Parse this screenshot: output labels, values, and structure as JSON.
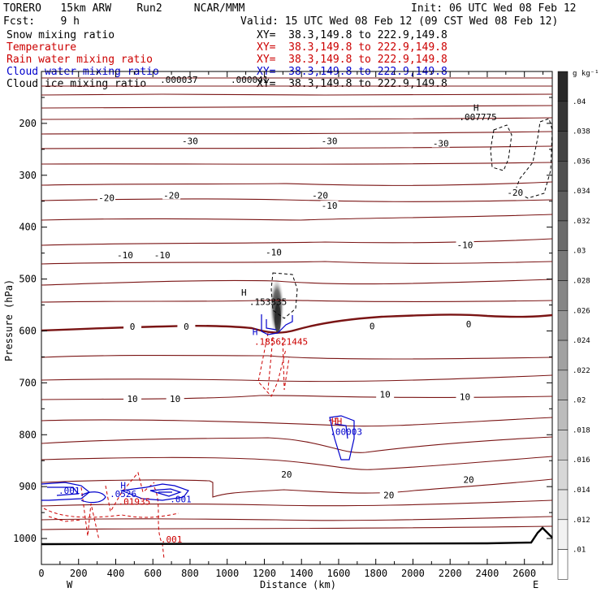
{
  "header": {
    "model": "TORERO   15km ARW    Run2     NCAR/MMM",
    "init": "Init: 06 UTC Wed 08 Feb 12",
    "fcst": "Fcst:    9 h",
    "valid": "Valid: 15 UTC Wed 08 Feb 12 (09 CST Wed 08 Feb 12)"
  },
  "fields": [
    {
      "name": "Snow mixing ratio",
      "xy": "XY=  38.3,149.8 to 222.9,149.8",
      "color": "#000000"
    },
    {
      "name": "Temperature",
      "xy": "XY=  38.3,149.8 to 222.9,149.8",
      "color": "#cc0000"
    },
    {
      "name": "Rain water mixing ratio",
      "xy": "XY=  38.3,149.8 to 222.9,149.8",
      "color": "#cc0000"
    },
    {
      "name": "Cloud water mixing ratio",
      "xy": "XY=  38.3,149.8 to 222.9,149.8",
      "color": "#0000cc"
    },
    {
      "name": "Cloud ice mixing ratio",
      "xy": "XY=  38.3,149.8 to 222.9,149.8",
      "color": "#000000"
    }
  ],
  "chart_data": {
    "type": "contour",
    "ylabel": "Pressure (hPa)",
    "xlabel": "Distance (km)",
    "x_ticks": [
      0,
      200,
      400,
      600,
      800,
      1000,
      1200,
      1400,
      1600,
      1800,
      2000,
      2200,
      2400,
      2600
    ],
    "y_ticks": [
      200,
      300,
      400,
      500,
      600,
      700,
      800,
      900,
      1000
    ],
    "xlim": [
      0,
      2750
    ],
    "ylim": [
      1050,
      100
    ],
    "x_end_labels": {
      "left": "W",
      "right": "E"
    },
    "colorbar": {
      "unit": "g kg⁻¹",
      "ticks": [
        ".04",
        ".038",
        ".036",
        ".034",
        ".032",
        ".03",
        ".028",
        ".026",
        ".024",
        ".022",
        ".02",
        ".018",
        ".016",
        ".014",
        ".012",
        ".01"
      ]
    },
    "temperature_labels": [
      {
        "text": "-30",
        "x": 800,
        "p": 235
      },
      {
        "text": "-30",
        "x": 1550,
        "p": 235
      },
      {
        "text": "-30",
        "x": 2150,
        "p": 240
      },
      {
        "text": "-20",
        "x": 700,
        "p": 340
      },
      {
        "text": "-20",
        "x": 1500,
        "p": 340
      },
      {
        "text": "-20",
        "x": 2550,
        "p": 335
      },
      {
        "text": "-20",
        "x": 350,
        "p": 345
      },
      {
        "text": "-10",
        "x": 450,
        "p": 455
      },
      {
        "text": "-10",
        "x": 650,
        "p": 455
      },
      {
        "text": "-10",
        "x": 1250,
        "p": 450
      },
      {
        "text": "-10",
        "x": 1550,
        "p": 360
      },
      {
        "text": "-10",
        "x": 2280,
        "p": 436
      },
      {
        "text": "0",
        "x": 490,
        "p": 593
      },
      {
        "text": "0",
        "x": 780,
        "p": 593
      },
      {
        "text": "0",
        "x": 1780,
        "p": 592
      },
      {
        "text": "0",
        "x": 2300,
        "p": 588
      },
      {
        "text": "10",
        "x": 490,
        "p": 732
      },
      {
        "text": "10",
        "x": 720,
        "p": 732
      },
      {
        "text": "10",
        "x": 1850,
        "p": 724
      },
      {
        "text": "10",
        "x": 2280,
        "p": 728
      },
      {
        "text": "20",
        "x": 1320,
        "p": 878
      },
      {
        "text": "20",
        "x": 1870,
        "p": 918
      },
      {
        "text": "20",
        "x": 2300,
        "p": 888
      }
    ],
    "extrema_labels": [
      {
        "text": ".000037",
        "x": 740,
        "p": 122,
        "color": "#000000"
      },
      {
        "text": ".000041",
        "x": 1120,
        "p": 122,
        "color": "#000000"
      },
      {
        "text": "H",
        "x": 2340,
        "p": 176,
        "color": "#000000"
      },
      {
        "text": ".007775",
        "x": 2350,
        "p": 194,
        "color": "#000000"
      },
      {
        "text": "H",
        "x": 1090,
        "p": 532,
        "color": "#000000"
      },
      {
        "text": ".153335",
        "x": 1220,
        "p": 550,
        "color": "#000000"
      },
      {
        "text": "H",
        "x": 1150,
        "p": 608,
        "color": "#0000cc"
      },
      {
        "text": ".185621445",
        "x": 1290,
        "p": 627,
        "color": "#cc0000"
      },
      {
        "text": "HH",
        "x": 1590,
        "p": 780,
        "color": "#cc0000"
      },
      {
        "text": ".00003",
        "x": 1640,
        "p": 800,
        "color": "#0000cc"
      },
      {
        "text": ".001",
        "x": 150,
        "p": 914,
        "color": "#0000cc"
      },
      {
        "text": "H",
        "x": 440,
        "p": 904,
        "color": "#0000cc"
      },
      {
        "text": ".0526",
        "x": 440,
        "p": 920,
        "color": "#0000cc"
      },
      {
        "text": ".01935",
        "x": 500,
        "p": 935,
        "color": "#cc0000"
      },
      {
        "text": ".001",
        "x": 750,
        "p": 930,
        "color": "#0000cc"
      },
      {
        "text": ".001",
        "x": 700,
        "p": 1008,
        "color": "#cc0000"
      }
    ]
  }
}
